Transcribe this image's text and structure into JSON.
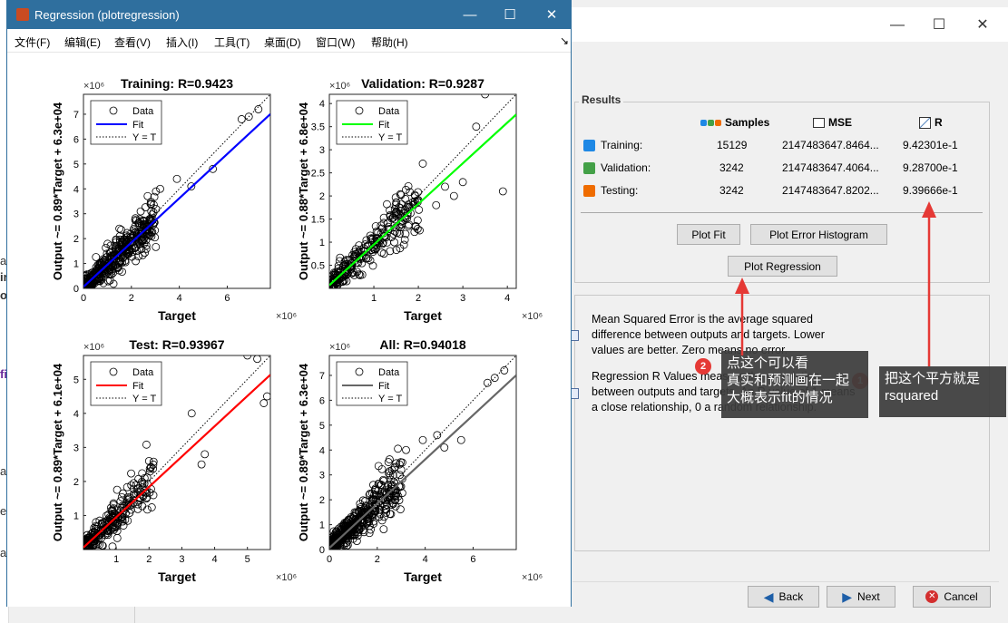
{
  "figure_window": {
    "title": "Regression (plotregression)",
    "menu": [
      "文件(F)",
      "编辑(E)",
      "查看(V)",
      "插入(I)",
      "工具(T)",
      "桌面(D)",
      "窗口(W)",
      "帮助(H)"
    ],
    "menu_arrow": "↘"
  },
  "chart_data": [
    {
      "type": "scatter",
      "title": "Training: R=0.9423",
      "xlabel": "Target",
      "ylabel": "Output ~= 0.89*Target + 6.3e+04",
      "x_exponent": "×10⁶",
      "y_exponent": "×10⁶",
      "xlim": [
        0,
        7.8
      ],
      "ylim": [
        0,
        7.8
      ],
      "xticks": [
        "0",
        "2",
        "4",
        "6"
      ],
      "yticks": [
        "0",
        "1",
        "2",
        "3",
        "4",
        "5",
        "6",
        "7"
      ],
      "fit_color": "#0000ff",
      "legend": [
        "Data",
        "Fit",
        "Y = T"
      ],
      "fit": {
        "slope": 0.89,
        "intercept": 0.063
      },
      "outliers": [
        [
          7.3,
          7.2
        ],
        [
          6.9,
          6.9
        ],
        [
          6.6,
          6.8
        ],
        [
          5.4,
          4.8
        ],
        [
          3.9,
          4.4
        ],
        [
          3.2,
          4.0
        ],
        [
          2.8,
          3.4
        ],
        [
          4.5,
          4.1
        ],
        [
          1.5,
          2.4
        ]
      ],
      "cluster": {
        "xmax": 3.0,
        "spread": 0.45,
        "n": 420
      }
    },
    {
      "type": "scatter",
      "title": "Validation: R=0.9287",
      "xlabel": "Target",
      "ylabel": "Output ~= 0.88*Target + 6.8e+04",
      "x_exponent": "×10⁶",
      "y_exponent": "×10⁶",
      "xlim": [
        0,
        4.2
      ],
      "ylim": [
        0,
        4.2
      ],
      "xticks": [
        "1",
        "2",
        "3",
        "4"
      ],
      "yticks": [
        "0.5",
        "1",
        "1.5",
        "2",
        "2.5",
        "3",
        "3.5",
        "4"
      ],
      "fit_color": "#00ff00",
      "legend": [
        "Data",
        "Fit",
        "Y = T"
      ],
      "fit": {
        "slope": 0.88,
        "intercept": 0.068
      },
      "outliers": [
        [
          3.5,
          4.2
        ],
        [
          3.3,
          3.5
        ],
        [
          3.9,
          2.1
        ],
        [
          3.0,
          2.3
        ],
        [
          2.8,
          2.0
        ],
        [
          2.6,
          2.2
        ],
        [
          2.4,
          1.8
        ],
        [
          2.1,
          2.7
        ]
      ],
      "cluster": {
        "xmax": 2.0,
        "spread": 0.28,
        "n": 260
      }
    },
    {
      "type": "scatter",
      "title": "Test: R=0.93967",
      "xlabel": "Target",
      "ylabel": "Output ~= 0.89*Target + 6.1e+04",
      "x_exponent": "×10⁶",
      "y_exponent": "×10⁶",
      "xlim": [
        0,
        5.7
      ],
      "ylim": [
        0,
        5.7
      ],
      "xticks": [
        "1",
        "2",
        "3",
        "4",
        "5"
      ],
      "yticks": [
        "1",
        "2",
        "3",
        "4",
        "5"
      ],
      "fit_color": "#ff0000",
      "legend": [
        "Data",
        "Fit",
        "Y = T"
      ],
      "fit": {
        "slope": 0.89,
        "intercept": 0.061
      },
      "outliers": [
        [
          5.0,
          5.7
        ],
        [
          5.3,
          5.6
        ],
        [
          5.5,
          4.3
        ],
        [
          5.6,
          4.5
        ],
        [
          3.3,
          4.0
        ],
        [
          3.7,
          2.8
        ],
        [
          3.6,
          2.5
        ],
        [
          2.0,
          2.6
        ]
      ],
      "cluster": {
        "xmax": 2.1,
        "spread": 0.35,
        "n": 260
      }
    },
    {
      "type": "scatter",
      "title": "All: R=0.94018",
      "xlabel": "Target",
      "ylabel": "Output ~= 0.89*Target + 6.3e+04",
      "x_exponent": "×10⁶",
      "y_exponent": "×10⁶",
      "xlim": [
        0,
        7.8
      ],
      "ylim": [
        0,
        7.8
      ],
      "xticks": [
        "0",
        "2",
        "4",
        "6"
      ],
      "yticks": [
        "0",
        "1",
        "2",
        "3",
        "4",
        "5",
        "6",
        "7"
      ],
      "fit_color": "#666666",
      "legend": [
        "Data",
        "Fit",
        "Y = T"
      ],
      "fit": {
        "slope": 0.89,
        "intercept": 0.063
      },
      "outliers": [
        [
          7.3,
          7.2
        ],
        [
          6.9,
          6.9
        ],
        [
          6.6,
          6.7
        ],
        [
          5.5,
          4.4
        ],
        [
          4.8,
          4.1
        ],
        [
          3.9,
          4.4
        ],
        [
          3.2,
          4.0
        ],
        [
          3.0,
          3.2
        ],
        [
          4.5,
          4.6
        ]
      ],
      "cluster": {
        "xmax": 3.0,
        "spread": 0.45,
        "n": 480
      }
    }
  ],
  "results": {
    "title": "Results",
    "headers": {
      "samples": "Samples",
      "mse": "MSE",
      "r": "R"
    },
    "rows": [
      {
        "label": "Training:",
        "samples": "15129",
        "mse": "2147483647.8464...",
        "r": "9.42301e-1",
        "color": "#1e88e5"
      },
      {
        "label": "Validation:",
        "samples": "3242",
        "mse": "2147483647.4064...",
        "r": "9.28700e-1",
        "color": "#43a047"
      },
      {
        "label": "Testing:",
        "samples": "3242",
        "mse": "2147483647.8202...",
        "r": "9.39666e-1",
        "color": "#ef6c00"
      }
    ],
    "buttons": {
      "plot_fit": "Plot Fit",
      "plot_error_histogram": "Plot Error Histogram",
      "plot_regression": "Plot Regression"
    }
  },
  "info": {
    "mse_text": [
      "Mean Squared Error is the average squared",
      "difference between outputs and targets. Lower",
      "values are better. Zero means no error."
    ],
    "r_text": [
      "Regression R Values measure the correlation",
      "between outputs and targets. An R value of 1 means",
      "a close relationship, 0 a random relationship."
    ]
  },
  "wizard_buttons": {
    "back": "Back",
    "next": "Next",
    "cancel": "Cancel"
  },
  "callouts": {
    "one": {
      "badge": "1",
      "lines": [
        "把这个平方就是",
        "rsquared"
      ]
    },
    "two": {
      "badge": "2",
      "lines": [
        "点这个可以看",
        "真实和预测画在一起",
        "大概表示fit的情况"
      ]
    }
  },
  "left_strip": [
    "al",
    "ir",
    "o",
    "fi",
    "a",
    "e",
    "a"
  ]
}
